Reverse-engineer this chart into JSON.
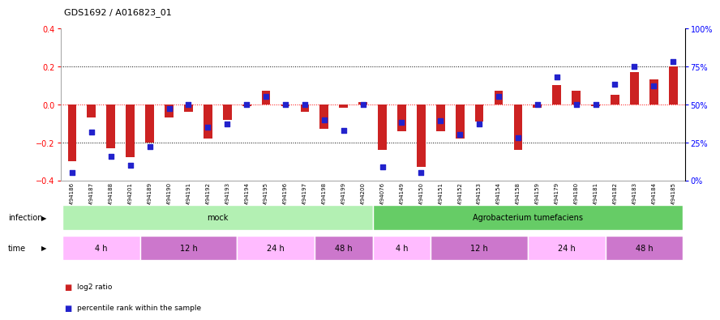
{
  "title": "GDS1692 / A016823_01",
  "samples": [
    "GSM94186",
    "GSM94187",
    "GSM94188",
    "GSM94201",
    "GSM94189",
    "GSM94190",
    "GSM94191",
    "GSM94192",
    "GSM94193",
    "GSM94194",
    "GSM94195",
    "GSM94196",
    "GSM94197",
    "GSM94198",
    "GSM94199",
    "GSM94200",
    "GSM94076",
    "GSM94149",
    "GSM94150",
    "GSM94151",
    "GSM94152",
    "GSM94153",
    "GSM94154",
    "GSM94158",
    "GSM94159",
    "GSM94179",
    "GSM94180",
    "GSM94181",
    "GSM94182",
    "GSM94183",
    "GSM94184",
    "GSM94185"
  ],
  "log2_ratio": [
    -0.3,
    -0.07,
    -0.23,
    -0.28,
    -0.2,
    -0.07,
    -0.04,
    -0.18,
    -0.08,
    -0.01,
    0.07,
    -0.01,
    -0.04,
    -0.13,
    -0.02,
    0.01,
    -0.24,
    -0.14,
    -0.33,
    -0.14,
    -0.18,
    -0.09,
    0.07,
    -0.24,
    -0.02,
    0.1,
    0.07,
    -0.01,
    0.05,
    0.17,
    0.13,
    0.2
  ],
  "percentile_rank": [
    5,
    32,
    16,
    10,
    22,
    47,
    50,
    35,
    37,
    50,
    55,
    50,
    50,
    40,
    33,
    50,
    9,
    38,
    5,
    39,
    30,
    37,
    55,
    28,
    50,
    68,
    50,
    50,
    63,
    75,
    62,
    78
  ],
  "infection_groups": [
    {
      "label": "mock",
      "start": 0,
      "end": 15,
      "color": "#b3f0b3"
    },
    {
      "label": "Agrobacterium tumefaciens",
      "start": 16,
      "end": 31,
      "color": "#66cc66"
    }
  ],
  "time_groups": [
    {
      "label": "4 h",
      "start": 0,
      "end": 3,
      "color": "#ffbbff"
    },
    {
      "label": "12 h",
      "start": 4,
      "end": 8,
      "color": "#cc77cc"
    },
    {
      "label": "24 h",
      "start": 9,
      "end": 12,
      "color": "#ffbbff"
    },
    {
      "label": "48 h",
      "start": 13,
      "end": 15,
      "color": "#cc77cc"
    },
    {
      "label": "4 h",
      "start": 16,
      "end": 18,
      "color": "#ffbbff"
    },
    {
      "label": "12 h",
      "start": 19,
      "end": 23,
      "color": "#cc77cc"
    },
    {
      "label": "24 h",
      "start": 24,
      "end": 27,
      "color": "#ffbbff"
    },
    {
      "label": "48 h",
      "start": 28,
      "end": 31,
      "color": "#cc77cc"
    }
  ],
  "ylim": [
    -0.4,
    0.4
  ],
  "yticks_left": [
    -0.4,
    -0.2,
    0.0,
    0.2,
    0.4
  ],
  "bar_color": "#cc2222",
  "dot_color": "#2222cc",
  "bar_width": 0.45,
  "dot_size": 18,
  "background_color": "#ffffff"
}
